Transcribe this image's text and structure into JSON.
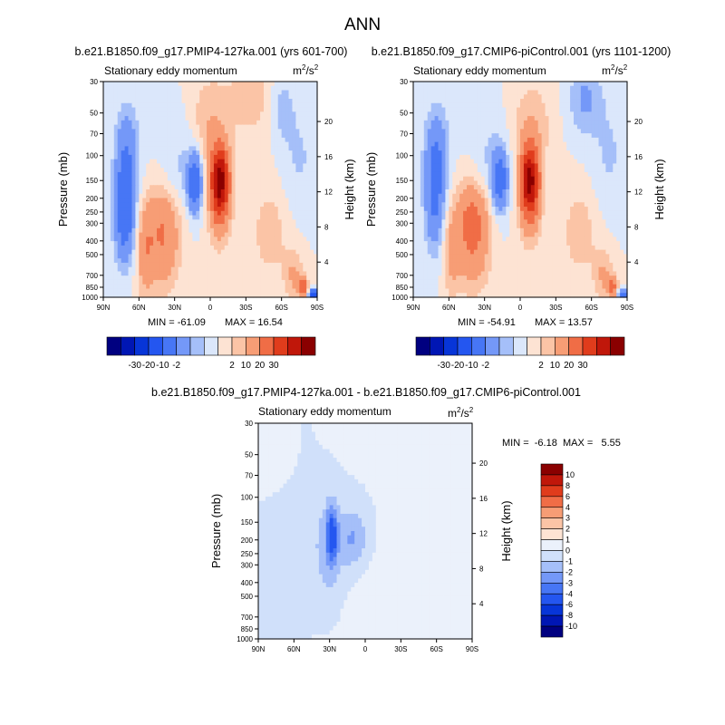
{
  "figure_title": "ANN",
  "chart_data": [
    {
      "type": "heatmap",
      "id": "p1",
      "title": "b.e21.B1850.f09_g17.PMIP4-127ka.001 (yrs 601-700)",
      "subtitle": "Stationary eddy momentum",
      "units": "m²/s²",
      "units_base": "m",
      "units_sup1": "2",
      "units_mid": "/s",
      "units_sup2": "2",
      "ylabel": "Pressure (mb)",
      "ylabel_right": "Height (km)",
      "x_ticks": [
        "90N",
        "60N",
        "30N",
        "0",
        "30S",
        "60S",
        "90S"
      ],
      "y_ticks": [
        "30",
        "50",
        "70",
        "100",
        "150",
        "200",
        "250",
        "300",
        "400",
        "500",
        "700",
        "850",
        "1000"
      ],
      "y_ticks_right": [
        "20",
        "16",
        "12",
        "8",
        "4"
      ],
      "min_label": "MIN = -61.09",
      "max_label": "MAX = 16.54",
      "min": -61.09,
      "max": 16.54,
      "features": [
        {
          "lat": 72,
          "p": 250,
          "v": -4.5,
          "sx": 6,
          "sy": 0.55
        },
        {
          "lat": 70,
          "p": 90,
          "v": -2.2,
          "sx": 7,
          "sy": 0.5
        },
        {
          "lat": 40,
          "p": 300,
          "v": 2.6,
          "sx": 11,
          "sy": 0.45
        },
        {
          "lat": 40,
          "p": 600,
          "v": 1.3,
          "sx": 10,
          "sy": 0.4
        },
        {
          "lat": 13,
          "p": 155,
          "v": -4.5,
          "sx": 4,
          "sy": 0.32
        },
        {
          "lat": -8,
          "p": 150,
          "v": 8.5,
          "sx": 4.5,
          "sy": 0.33
        },
        {
          "lat": -8,
          "p": 180,
          "v": 3.5,
          "sx": 7,
          "sy": 0.55
        },
        {
          "lat": 25,
          "p": 130,
          "v": -0.9,
          "sx": 12,
          "sy": 0.6
        },
        {
          "lat": 3,
          "p": 60,
          "v": 1.1,
          "sx": 10,
          "sy": 0.5
        },
        {
          "lat": -35,
          "p": 40,
          "v": 1.0,
          "sx": 22,
          "sy": 0.5
        },
        {
          "lat": -60,
          "p": 45,
          "v": -1.4,
          "sx": 8,
          "sy": 0.4
        },
        {
          "lat": -75,
          "p": 100,
          "v": -0.8,
          "sx": 10,
          "sy": 0.6
        },
        {
          "lat": -50,
          "p": 350,
          "v": 1.2,
          "sx": 10,
          "sy": 0.5
        },
        {
          "lat": -78,
          "p": 850,
          "v": 3.5,
          "sx": 3,
          "sy": 0.12
        },
        {
          "lat": -87,
          "p": 960,
          "v": -6,
          "sx": 3,
          "sy": 0.06
        },
        {
          "lat": -70,
          "p": 700,
          "v": 1.5,
          "sx": 6,
          "sy": 0.3
        },
        {
          "lat": 55,
          "p": 500,
          "v": 1.8,
          "sx": 5,
          "sy": 0.5
        }
      ]
    },
    {
      "type": "heatmap",
      "id": "p2",
      "title": "b.e21.B1850.f09_g17.CMIP6-piControl.001 (yrs 1101-1200)",
      "subtitle": "Stationary eddy momentum",
      "units": "m²/s²",
      "units_base": "m",
      "units_sup1": "2",
      "units_mid": "/s",
      "units_sup2": "2",
      "ylabel": "Pressure (mb)",
      "ylabel_right": "Height (km)",
      "x_ticks": [
        "90N",
        "60N",
        "30N",
        "0",
        "30S",
        "60S",
        "90S"
      ],
      "y_ticks": [
        "30",
        "50",
        "70",
        "100",
        "150",
        "200",
        "250",
        "300",
        "400",
        "500",
        "700",
        "850",
        "1000"
      ],
      "y_ticks_right": [
        "20",
        "16",
        "12",
        "8",
        "4"
      ],
      "min_label": "MIN = -54.91",
      "max_label": "MAX = 13.57",
      "min": -54.91,
      "max": 13.57,
      "features": [
        {
          "lat": 72,
          "p": 200,
          "v": -3.0,
          "sx": 6,
          "sy": 0.6
        },
        {
          "lat": 70,
          "p": 90,
          "v": -2.0,
          "sx": 7,
          "sy": 0.5
        },
        {
          "lat": 40,
          "p": 280,
          "v": 3.5,
          "sx": 10,
          "sy": 0.45
        },
        {
          "lat": 40,
          "p": 600,
          "v": 1.4,
          "sx": 10,
          "sy": 0.4
        },
        {
          "lat": 17,
          "p": 150,
          "v": -3.8,
          "sx": 4.5,
          "sy": 0.32
        },
        {
          "lat": -8,
          "p": 150,
          "v": 8.0,
          "sx": 4.5,
          "sy": 0.33
        },
        {
          "lat": -8,
          "p": 180,
          "v": 3.2,
          "sx": 7,
          "sy": 0.55
        },
        {
          "lat": 25,
          "p": 120,
          "v": -0.9,
          "sx": 12,
          "sy": 0.6
        },
        {
          "lat": -10,
          "p": 60,
          "v": 1.2,
          "sx": 12,
          "sy": 0.5
        },
        {
          "lat": -55,
          "p": 40,
          "v": -1.6,
          "sx": 10,
          "sy": 0.4
        },
        {
          "lat": -75,
          "p": 100,
          "v": -0.8,
          "sx": 10,
          "sy": 0.6
        },
        {
          "lat": -50,
          "p": 350,
          "v": 1.2,
          "sx": 10,
          "sy": 0.5
        },
        {
          "lat": -78,
          "p": 850,
          "v": 3.0,
          "sx": 3,
          "sy": 0.12
        },
        {
          "lat": -87,
          "p": 960,
          "v": -5.5,
          "sx": 3,
          "sy": 0.06
        },
        {
          "lat": -70,
          "p": 700,
          "v": 1.5,
          "sx": 6,
          "sy": 0.3
        },
        {
          "lat": 58,
          "p": 500,
          "v": 1.5,
          "sx": 5,
          "sy": 0.5
        }
      ]
    },
    {
      "type": "heatmap",
      "id": "p3",
      "title": "b.e21.B1850.f09_g17.PMIP4-127ka.001 - b.e21.B1850.f09_g17.CMIP6-piControl.001",
      "subtitle": "Stationary eddy momentum",
      "units": "m²/s²",
      "units_base": "m",
      "units_sup1": "2",
      "units_mid": "/s",
      "units_sup2": "2",
      "ylabel": "Pressure (mb)",
      "ylabel_right": "Height (km)",
      "x_ticks": [
        "90N",
        "60N",
        "30N",
        "0",
        "30S",
        "60S",
        "90S"
      ],
      "y_ticks": [
        "30",
        "50",
        "70",
        "100",
        "150",
        "200",
        "250",
        "300",
        "400",
        "500",
        "700",
        "850",
        "1000"
      ],
      "y_ticks_right": [
        "20",
        "16",
        "12",
        "8",
        "4"
      ],
      "min_label": "MIN =  -6.18",
      "max_label": "MAX =   5.55",
      "min": -6.18,
      "max": 5.55,
      "features": [
        {
          "lat": 28,
          "p": 185,
          "v": -4.0,
          "sx": 3,
          "sy": 0.3
        },
        {
          "lat": 30,
          "p": 230,
          "v": -1.8,
          "sx": 9,
          "sy": 0.6
        },
        {
          "lat": 10,
          "p": 200,
          "v": -1.6,
          "sx": 7,
          "sy": 0.3
        },
        {
          "lat": 5,
          "p": 170,
          "v": -0.8,
          "sx": 14,
          "sy": 0.55
        },
        {
          "lat": 60,
          "p": 200,
          "v": -0.7,
          "sx": 12,
          "sy": 0.8
        },
        {
          "lat": -30,
          "p": 350,
          "v": 0.6,
          "sx": 40,
          "sy": 1.2
        },
        {
          "lat": -45,
          "p": 50,
          "v": 0.6,
          "sx": 30,
          "sy": 0.6
        },
        {
          "lat": 70,
          "p": 60,
          "v": 0.4,
          "sx": 10,
          "sy": 0.4
        }
      ]
    }
  ],
  "colorbar_top": {
    "labels": [
      "-30",
      "-20",
      "-10",
      "-2",
      "2",
      "10",
      "20",
      "30"
    ],
    "colors": [
      "#000080",
      "#0016b4",
      "#0735d8",
      "#2456f0",
      "#4776f5",
      "#7498f8",
      "#a5bff9",
      "#dbe7fb",
      "#fde3d3",
      "#fbc4a6",
      "#f79d75",
      "#f06d46",
      "#e03c1c",
      "#c0170a",
      "#8a0000"
    ]
  },
  "colorbar_diff": {
    "labels": [
      "10",
      "8",
      "6",
      "4",
      "3",
      "2",
      "1",
      "0",
      "-1",
      "-2",
      "-3",
      "-4",
      "-6",
      "-8",
      "-10"
    ],
    "levels": [
      -10,
      -8,
      -6,
      -4,
      -3,
      -2,
      -1,
      0,
      1,
      2,
      3,
      4,
      6,
      8,
      10
    ],
    "colors": [
      "#000080",
      "#0016b4",
      "#0735d8",
      "#2456f0",
      "#4776f5",
      "#7498f8",
      "#a5bff9",
      "#d0e0fa",
      "#ebf1fb",
      "#fde3d3",
      "#fbc4a6",
      "#f79d75",
      "#f06d46",
      "#e03c1c",
      "#c0170a",
      "#8a0000"
    ]
  }
}
